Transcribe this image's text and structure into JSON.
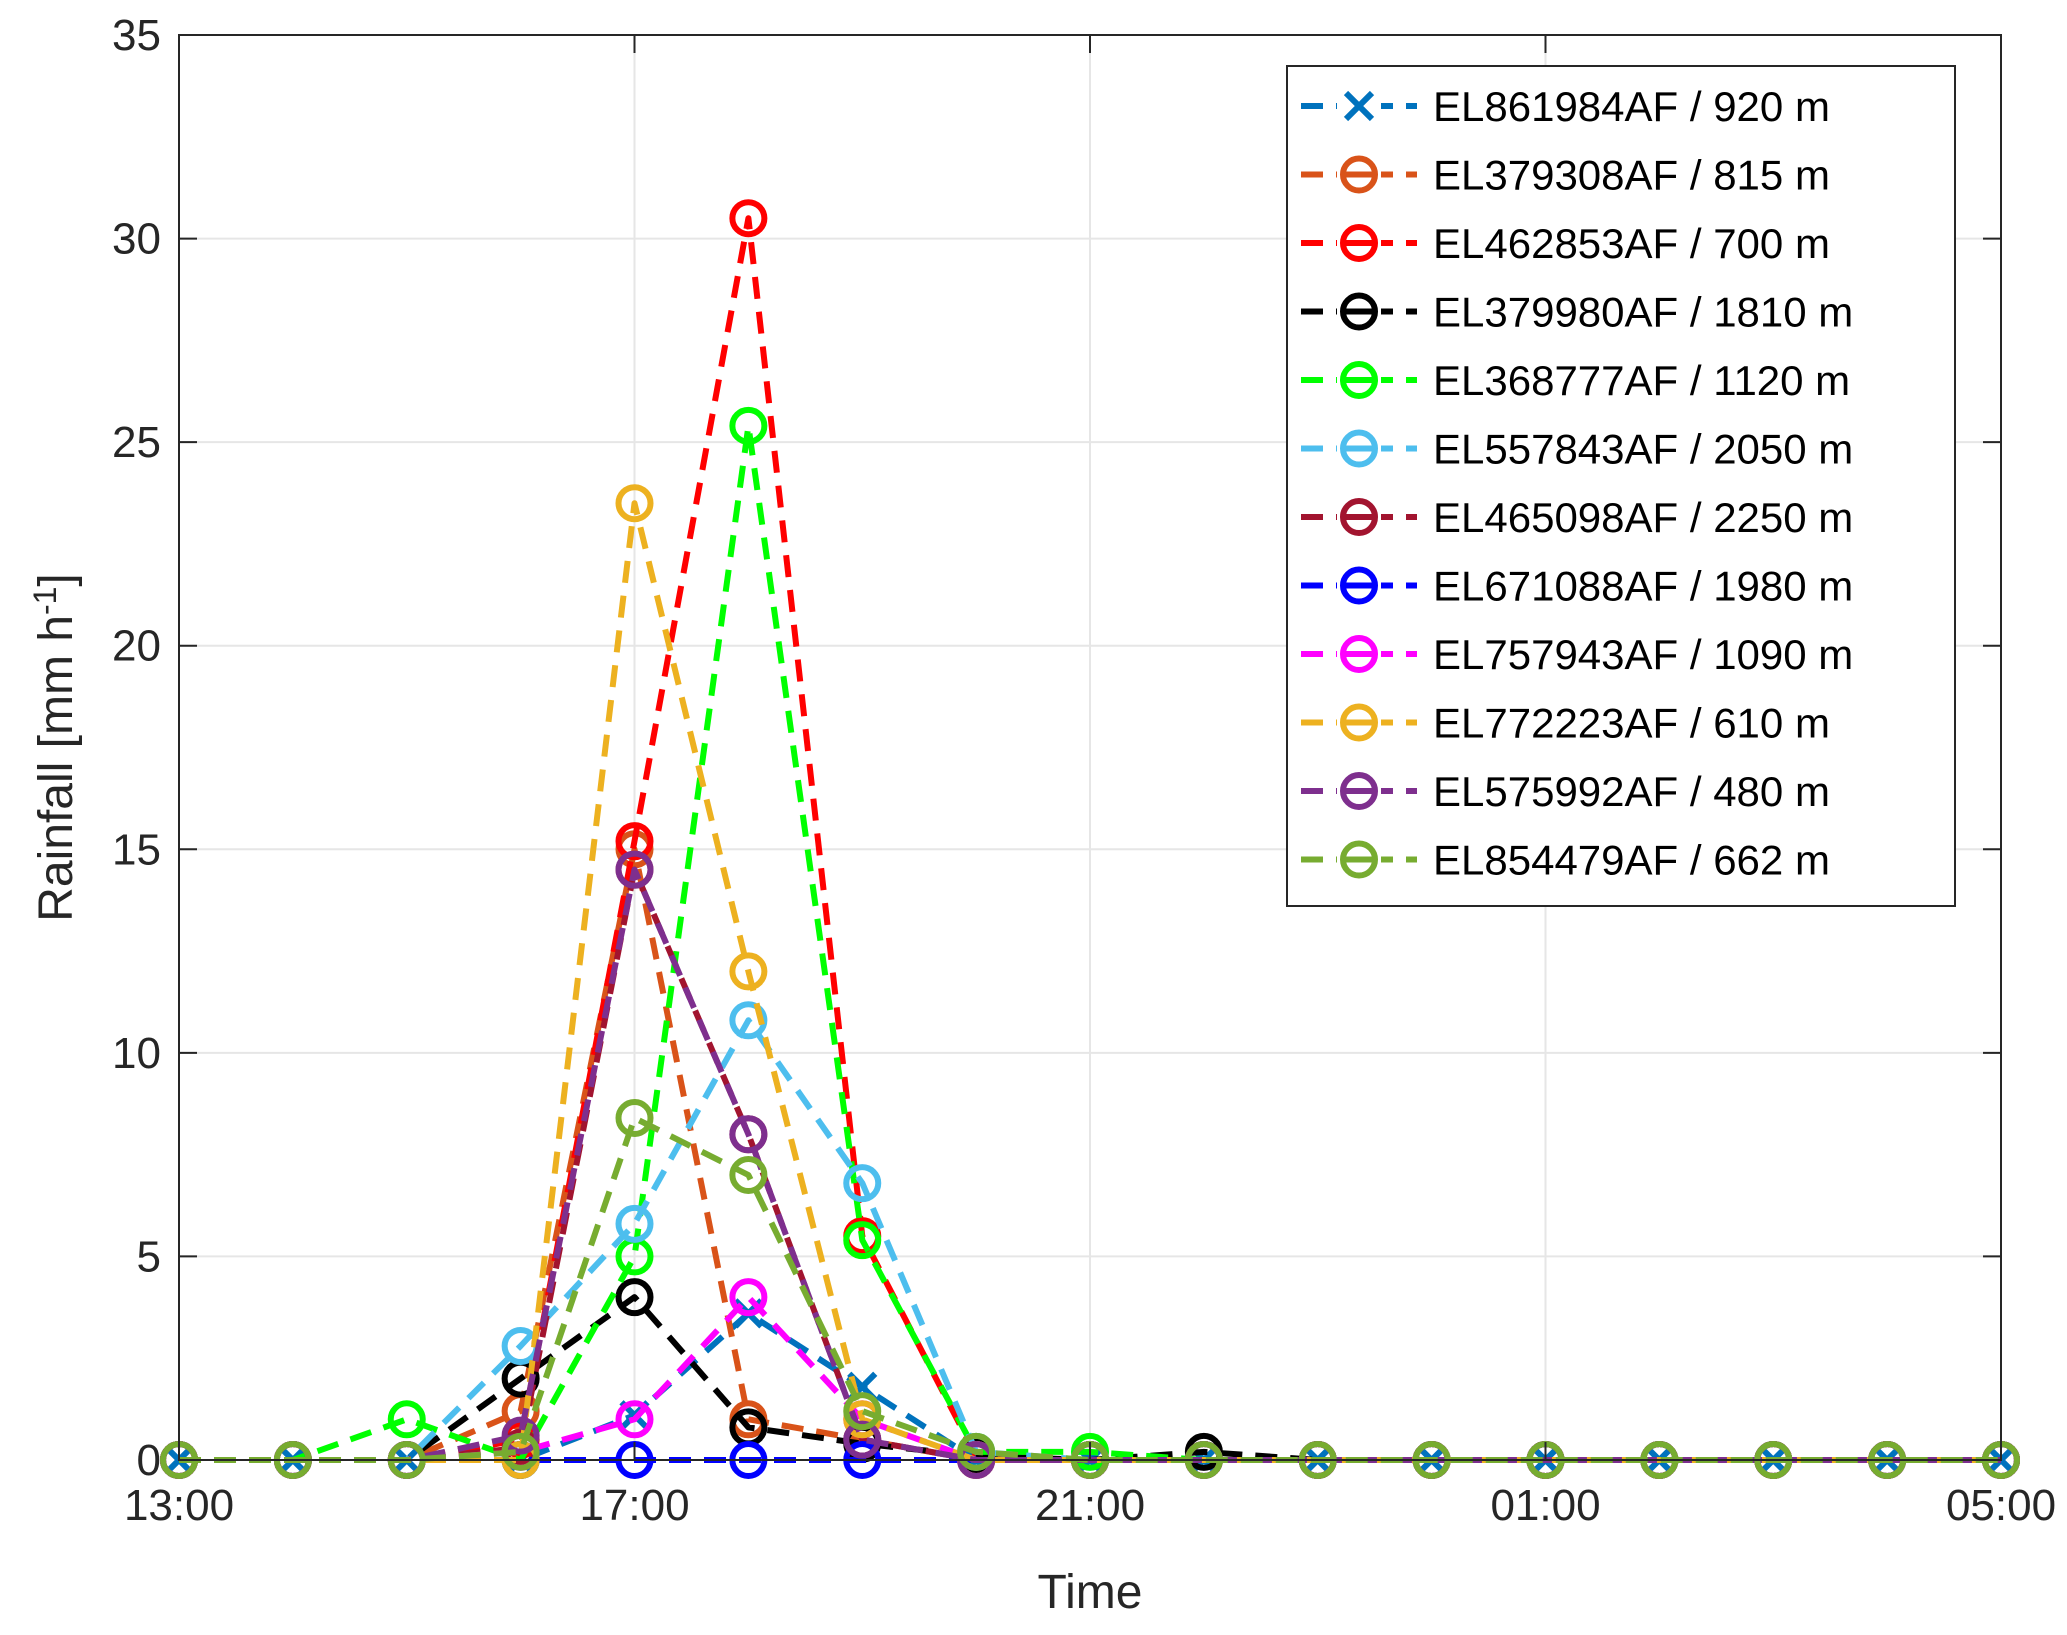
{
  "chart_data": {
    "type": "line",
    "title": "",
    "xlabel": "Time",
    "ylabel": "Rainfall [mm h",
    "ylabel_superscript": "-1",
    "ylabel_close": "]",
    "x": [
      "13:00",
      "14:00",
      "15:00",
      "16:00",
      "17:00",
      "18:00",
      "19:00",
      "20:00",
      "21:00",
      "22:00",
      "23:00",
      "00:00",
      "01:00",
      "02:00",
      "03:00",
      "04:00",
      "05:00"
    ],
    "xticks": [
      "13:00",
      "17:00",
      "21:00",
      "01:00",
      "05:00"
    ],
    "ylim": [
      0,
      35
    ],
    "yticks": [
      "0",
      "5",
      "10",
      "15",
      "20",
      "25",
      "30",
      "35"
    ],
    "grid": true,
    "legend_position": "top-right",
    "series": [
      {
        "name": "EL861984AF / 920 m",
        "color": "#0072BD",
        "marker": "x",
        "values": [
          0,
          0,
          0,
          0,
          1.1,
          3.6,
          1.8,
          0,
          0,
          0,
          0,
          0,
          0,
          0,
          0,
          0,
          0
        ]
      },
      {
        "name": "EL379308AF / 815 m",
        "color": "#D95319",
        "marker": "o",
        "values": [
          0,
          0,
          0,
          1.2,
          15.0,
          1.0,
          0.5,
          0,
          0,
          0,
          0,
          0,
          0,
          0,
          0,
          0,
          0
        ]
      },
      {
        "name": "EL462853AF / 700 m",
        "color": "#FF0000",
        "marker": "o",
        "values": [
          0,
          0,
          0,
          0.5,
          15.2,
          30.5,
          5.5,
          0.1,
          0,
          0,
          0,
          0,
          0,
          0,
          0,
          0,
          0
        ]
      },
      {
        "name": "EL379980AF / 1810 m",
        "color": "#000000",
        "marker": "o",
        "values": [
          0,
          0,
          0,
          2.0,
          4.0,
          0.8,
          0.4,
          0.1,
          0,
          0.2,
          0,
          0,
          0,
          0,
          0,
          0,
          0
        ]
      },
      {
        "name": "EL368777AF / 1120 m",
        "color": "#00FF00",
        "marker": "o",
        "values": [
          0,
          0,
          1.0,
          0,
          5.0,
          25.4,
          5.4,
          0.2,
          0.2,
          0,
          0,
          0,
          0,
          0,
          0,
          0,
          0
        ]
      },
      {
        "name": "EL557843AF / 2050 m",
        "color": "#4DBEEE",
        "marker": "o",
        "values": [
          0,
          0,
          0,
          2.8,
          5.8,
          10.8,
          6.8,
          0.2,
          0,
          0,
          0,
          0,
          0,
          0,
          0,
          0,
          0
        ]
      },
      {
        "name": "EL465098AF / 2250 m",
        "color": "#A2142F",
        "marker": "o",
        "values": [
          0,
          0,
          0,
          0.3,
          14.5,
          8.0,
          0.5,
          0,
          0,
          0,
          0,
          0,
          0,
          0,
          0,
          0,
          0
        ]
      },
      {
        "name": "EL671088AF / 1980 m",
        "color": "#0000FF",
        "marker": "o",
        "values": [
          0,
          0,
          0,
          0,
          0,
          0,
          0,
          0,
          0,
          0,
          0,
          0,
          0,
          0,
          0,
          0,
          0
        ]
      },
      {
        "name": "EL757943AF / 1090 m",
        "color": "#FF00FF",
        "marker": "o",
        "values": [
          0,
          0,
          0,
          0.2,
          1.0,
          4.0,
          1.0,
          0,
          0,
          0,
          0,
          0,
          0,
          0,
          0,
          0,
          0
        ]
      },
      {
        "name": "EL772223AF / 610 m",
        "color": "#EDB120",
        "marker": "o",
        "values": [
          0,
          0,
          0,
          0,
          23.5,
          12.0,
          1.0,
          0,
          0,
          0,
          0,
          0,
          0,
          0,
          0,
          0,
          0
        ]
      },
      {
        "name": "EL575992AF / 480 m",
        "color": "#7E2F8E",
        "marker": "o",
        "values": [
          0,
          0,
          0,
          0.6,
          14.5,
          8.0,
          0.5,
          0,
          0,
          0,
          0,
          0,
          0,
          0,
          0,
          0,
          0
        ]
      },
      {
        "name": "EL854479AF / 662 m",
        "color": "#77AC30",
        "marker": "o",
        "values": [
          0,
          0,
          0,
          0.2,
          8.4,
          7.0,
          1.2,
          0.2,
          0,
          0,
          0,
          0,
          0,
          0,
          0,
          0,
          0
        ]
      }
    ]
  }
}
